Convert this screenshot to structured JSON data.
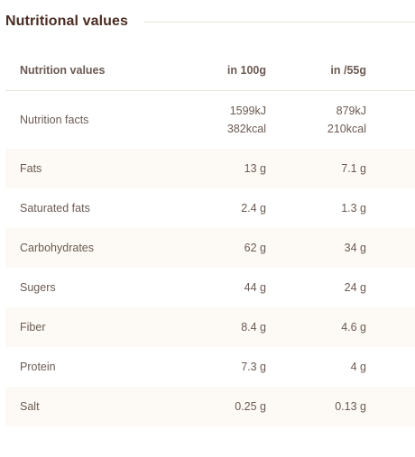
{
  "section": {
    "title": "Nutritional values"
  },
  "table": {
    "headers": {
      "label": "Nutrition values",
      "per100": "in 100g",
      "perServing": "in /55g"
    },
    "energy": {
      "label": "Nutrition facts",
      "per100_kj": "1599kJ",
      "per100_kcal": "382kcal",
      "serving_kj": "879kJ",
      "serving_kcal": "210kcal"
    },
    "rows": [
      {
        "label": "Fats",
        "per100": "13 g",
        "serving": "7.1 g"
      },
      {
        "label": "Saturated fats",
        "per100": "2.4 g",
        "serving": "1.3 g"
      },
      {
        "label": "Carbohydrates",
        "per100": "62 g",
        "serving": "34 g"
      },
      {
        "label": "Sugers",
        "per100": "44 g",
        "serving": "24 g"
      },
      {
        "label": "Fiber",
        "per100": "8.4 g",
        "serving": "4.6 g"
      },
      {
        "label": "Protein",
        "per100": "7.3 g",
        "serving": "4 g"
      },
      {
        "label": "Salt",
        "per100": "0.25 g",
        "serving": "0.13 g"
      }
    ]
  },
  "colors": {
    "title": "#4a2d23",
    "text": "#6b5a52",
    "row_shade": "#fdfaf5",
    "rule": "#ece6dc"
  }
}
